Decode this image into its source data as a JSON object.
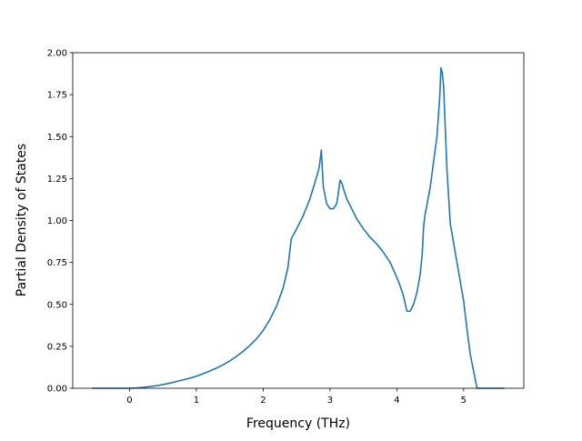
{
  "chart_data": {
    "type": "line",
    "title": "",
    "xlabel": "Frequency (THz)",
    "ylabel": "Partial Density of States",
    "xlim": [
      -0.85,
      5.9
    ],
    "ylim": [
      0,
      2.0
    ],
    "x_ticks": [
      0,
      1,
      2,
      3,
      4,
      5
    ],
    "x_tick_labels": [
      "0",
      "1",
      "2",
      "3",
      "4",
      "5"
    ],
    "y_ticks": [
      0,
      0.25,
      0.5,
      0.75,
      1.0,
      1.25,
      1.5,
      1.75,
      2.0
    ],
    "y_tick_labels": [
      "0.00",
      "0.25",
      "0.50",
      "0.75",
      "1.00",
      "1.25",
      "1.50",
      "1.75",
      "2.00"
    ],
    "grid": false,
    "legend": "none",
    "series": [
      {
        "color": "#1f77b4",
        "x": [
          -0.55,
          -0.3,
          -0.1,
          0.0,
          0.1,
          0.2,
          0.3,
          0.4,
          0.5,
          0.6,
          0.7,
          0.8,
          0.9,
          1.0,
          1.1,
          1.2,
          1.3,
          1.4,
          1.5,
          1.6,
          1.7,
          1.8,
          1.9,
          2.0,
          2.1,
          2.2,
          2.3,
          2.37,
          2.42,
          2.5,
          2.6,
          2.7,
          2.8,
          2.84,
          2.87,
          2.9,
          2.95,
          3.0,
          3.05,
          3.1,
          3.12,
          3.15,
          3.18,
          3.2,
          3.25,
          3.3,
          3.4,
          3.5,
          3.6,
          3.7,
          3.8,
          3.9,
          4.0,
          4.05,
          4.1,
          4.15,
          4.2,
          4.25,
          4.3,
          4.35,
          4.38,
          4.4,
          4.42,
          4.5,
          4.6,
          4.64,
          4.66,
          4.68,
          4.7,
          4.72,
          4.75,
          4.8,
          4.9,
          5.0,
          5.05,
          5.1,
          5.2,
          5.4,
          5.6
        ],
        "y": [
          0,
          0,
          0,
          0,
          0.002,
          0.005,
          0.01,
          0.015,
          0.022,
          0.03,
          0.04,
          0.05,
          0.06,
          0.072,
          0.087,
          0.103,
          0.12,
          0.14,
          0.163,
          0.19,
          0.22,
          0.255,
          0.295,
          0.345,
          0.41,
          0.49,
          0.6,
          0.72,
          0.89,
          0.95,
          1.03,
          1.13,
          1.26,
          1.32,
          1.42,
          1.2,
          1.1,
          1.07,
          1.07,
          1.1,
          1.15,
          1.24,
          1.22,
          1.19,
          1.13,
          1.09,
          1.01,
          0.95,
          0.9,
          0.86,
          0.81,
          0.75,
          0.66,
          0.61,
          0.55,
          0.46,
          0.46,
          0.5,
          0.57,
          0.68,
          0.8,
          0.96,
          1.03,
          1.2,
          1.5,
          1.72,
          1.91,
          1.88,
          1.8,
          1.6,
          1.3,
          0.98,
          0.75,
          0.52,
          0.35,
          0.2,
          0.0,
          0,
          0
        ]
      }
    ]
  }
}
